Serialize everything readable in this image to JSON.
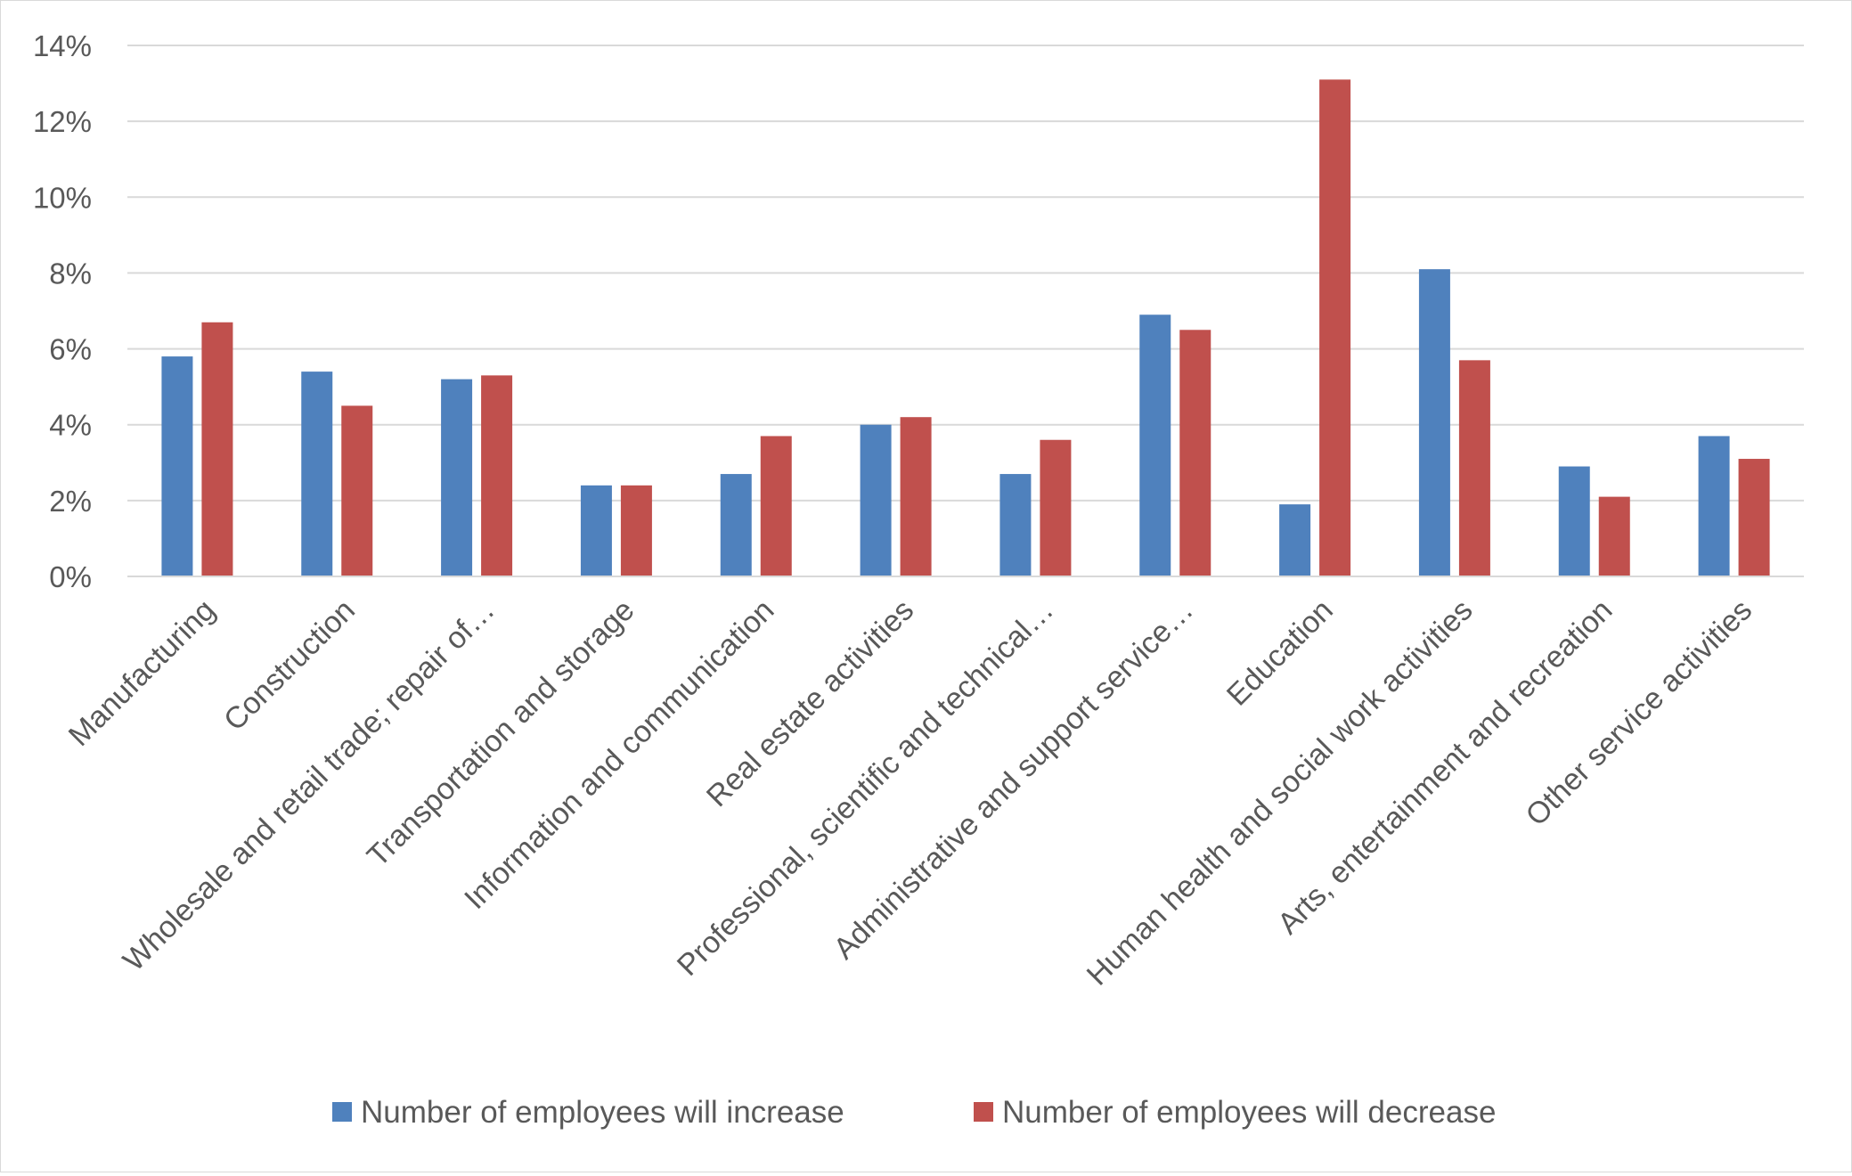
{
  "chart_data": {
    "type": "bar",
    "title": "",
    "xlabel": "",
    "ylabel": "",
    "ylim": [
      0,
      14
    ],
    "y_ticks": [
      0,
      2,
      4,
      6,
      8,
      10,
      12,
      14
    ],
    "y_tick_labels": [
      "0%",
      "2%",
      "4%",
      "6%",
      "8%",
      "10%",
      "12%",
      "14%"
    ],
    "y_unit": "%",
    "grid": true,
    "legend_position": "bottom",
    "categories": [
      "Manufacturing",
      "Construction",
      "Wholesale and retail trade; repair of…",
      "Transportation and storage",
      "Information and communication",
      "Real estate activities",
      "Professional, scientific and technical…",
      "Administrative and support service…",
      "Education",
      "Human health and social work activities",
      "Arts, entertainment and recreation",
      "Other service activities"
    ],
    "series": [
      {
        "name": "Number of employees will increase",
        "color": "#4f81bd",
        "values": [
          5.8,
          5.4,
          5.2,
          2.4,
          2.7,
          4.0,
          2.7,
          6.9,
          1.9,
          8.1,
          2.9,
          3.7
        ]
      },
      {
        "name": "Number of employees will decrease",
        "color": "#c0504d",
        "values": [
          6.7,
          4.5,
          5.3,
          2.4,
          3.7,
          4.2,
          3.6,
          6.5,
          13.1,
          5.7,
          2.1,
          3.1
        ]
      }
    ]
  },
  "colors": {
    "gridline": "#d9d9d9",
    "axis": "#d9d9d9",
    "text": "#595959"
  }
}
